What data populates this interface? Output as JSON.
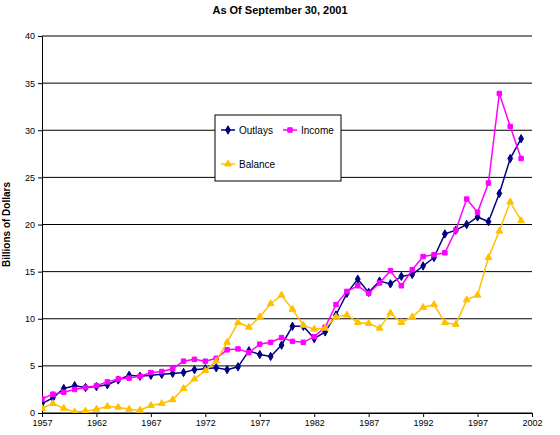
{
  "chart_data": {
    "type": "line",
    "title": "As Of September 30, 2001",
    "y_label": "Billions of Dollars",
    "x": [
      1957,
      1958,
      1959,
      1960,
      1961,
      1962,
      1963,
      1964,
      1965,
      1966,
      1967,
      1968,
      1969,
      1970,
      1971,
      1972,
      1973,
      1974,
      1975,
      1976,
      1977,
      1978,
      1979,
      1980,
      1981,
      1982,
      1983,
      1984,
      1985,
      1986,
      1987,
      1988,
      1989,
      1990,
      1991,
      1992,
      1993,
      1994,
      1995,
      1996,
      1997,
      1998,
      1999,
      2000,
      2001
    ],
    "series": [
      {
        "name": "Outlays",
        "color": "#000080",
        "marker": "diamond",
        "values": [
          1.0,
          1.6,
          2.6,
          2.9,
          2.7,
          2.8,
          3.0,
          3.5,
          4.0,
          3.9,
          4.0,
          4.1,
          4.2,
          4.3,
          4.6,
          4.7,
          4.8,
          4.6,
          4.9,
          6.6,
          6.2,
          6.0,
          7.2,
          9.2,
          9.2,
          7.9,
          8.6,
          10.4,
          12.7,
          14.2,
          12.8,
          14.0,
          13.7,
          14.5,
          14.7,
          15.6,
          16.5,
          19.0,
          19.4,
          20.0,
          20.8,
          20.3,
          23.3,
          27.0,
          29.1
        ]
      },
      {
        "name": "Income",
        "color": "#ff00ff",
        "marker": "square",
        "values": [
          1.5,
          2.0,
          2.2,
          2.5,
          2.7,
          2.9,
          3.3,
          3.6,
          3.7,
          3.9,
          4.3,
          4.4,
          4.7,
          5.5,
          5.7,
          5.5,
          5.8,
          6.7,
          6.8,
          6.4,
          7.3,
          7.5,
          8.0,
          7.6,
          7.5,
          8.1,
          9.1,
          11.5,
          12.9,
          13.5,
          12.7,
          13.8,
          15.1,
          13.5,
          15.2,
          16.6,
          16.8,
          17.0,
          19.4,
          22.7,
          21.3,
          24.4,
          33.9,
          30.4,
          27.0
        ]
      },
      {
        "name": "Balance",
        "color": "#ffc000",
        "marker": "triangle",
        "values": [
          0.5,
          1.0,
          0.5,
          0.1,
          0.2,
          0.4,
          0.7,
          0.6,
          0.4,
          0.3,
          0.8,
          1.0,
          1.4,
          2.6,
          3.6,
          4.5,
          5.5,
          7.5,
          9.6,
          9.1,
          10.2,
          11.6,
          12.5,
          11.0,
          9.3,
          8.9,
          9.0,
          10.2,
          10.4,
          9.6,
          9.5,
          9.0,
          10.6,
          9.6,
          10.2,
          11.2,
          11.5,
          9.6,
          9.4,
          12.0,
          12.5,
          16.5,
          19.3,
          22.4,
          20.4
        ]
      }
    ],
    "xlim": [
      1957,
      2002
    ],
    "xticks": [
      1957,
      1962,
      1967,
      1972,
      1977,
      1982,
      1987,
      1992,
      1997,
      2002
    ],
    "ylim": [
      0,
      40
    ],
    "yticks": [
      0,
      5,
      10,
      15,
      20,
      25,
      30,
      35,
      40
    ],
    "grid": true,
    "legend": "center"
  }
}
